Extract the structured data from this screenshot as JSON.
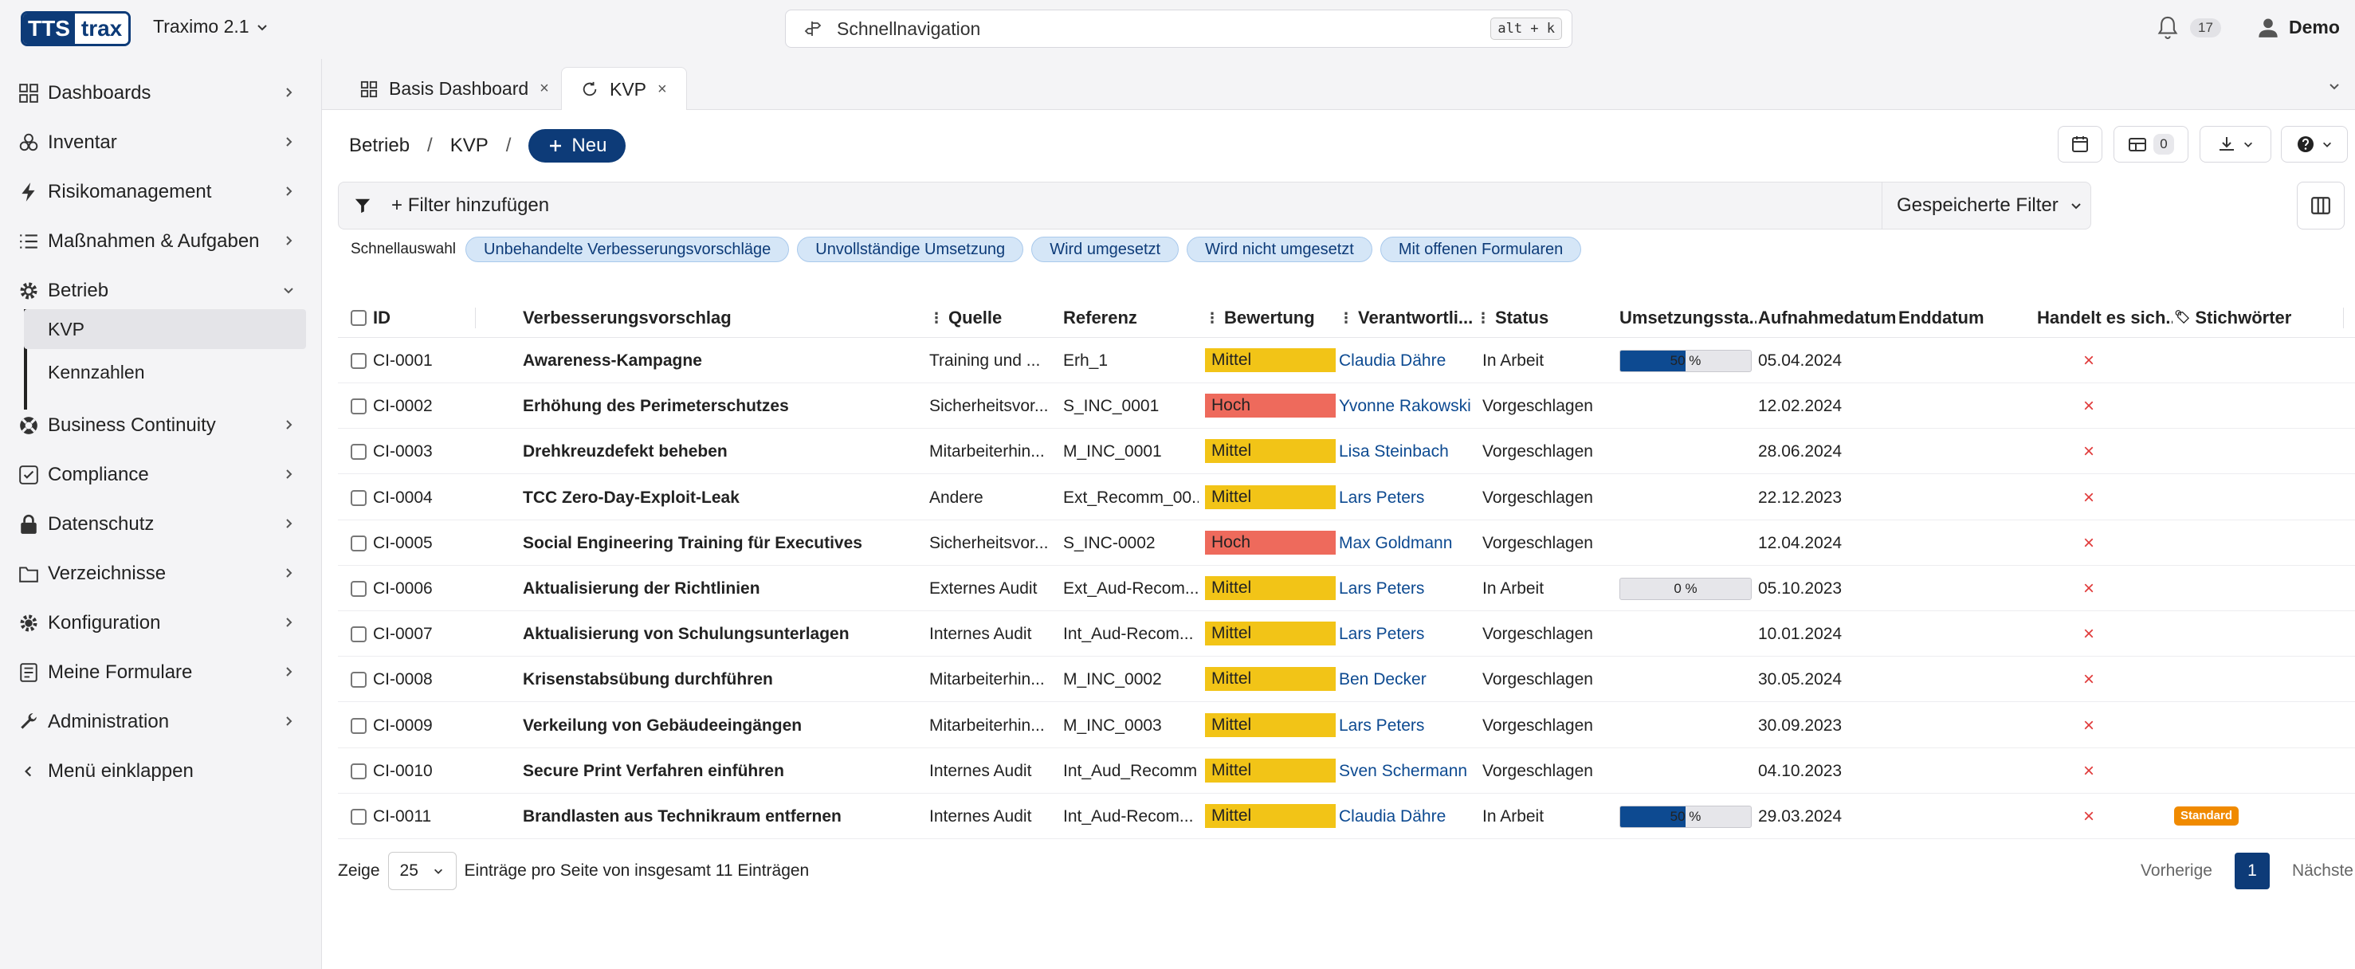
{
  "app": {
    "logo_part1": "TTS",
    "logo_part2": "trax",
    "name": "Traximo 2.1",
    "search_placeholder": "Schnellnavigation",
    "search_shortcut": "alt + k",
    "notification_count": "17",
    "user_name": "Demo"
  },
  "sidebar": {
    "items": [
      {
        "label": "Dashboards",
        "icon": "dashboard-grid-icon"
      },
      {
        "label": "Inventar",
        "icon": "cubes-icon"
      },
      {
        "label": "Risikomanagement",
        "icon": "bolt-icon"
      },
      {
        "label": "Maßnahmen & Aufgaben",
        "icon": "list-icon"
      },
      {
        "label": "Betrieb",
        "icon": "gear-icon"
      },
      {
        "label": "Business Continuity",
        "icon": "life-ring-icon"
      },
      {
        "label": "Compliance",
        "icon": "checkbox-icon"
      },
      {
        "label": "Datenschutz",
        "icon": "lock-icon"
      },
      {
        "label": "Verzeichnisse",
        "icon": "folder-icon"
      },
      {
        "label": "Konfiguration",
        "icon": "cog-icon"
      },
      {
        "label": "Meine Formulare",
        "icon": "form-icon"
      },
      {
        "label": "Administration",
        "icon": "wrench-icon"
      }
    ],
    "sub_items": [
      "KVP",
      "Kennzahlen"
    ],
    "collapse_label": "Menü einklappen"
  },
  "tabs": [
    {
      "label": "Basis Dashboard",
      "icon": "dashboard-grid-icon"
    },
    {
      "label": "KVP",
      "icon": "refresh-icon"
    }
  ],
  "breadcrumb": {
    "items": [
      "Betrieb",
      "KVP"
    ],
    "new_label": "Neu"
  },
  "toolbar": {
    "layout_count": "0"
  },
  "filter": {
    "add_label": "Filter hinzufügen",
    "saved_label": "Gespeicherte Filter"
  },
  "quick": {
    "label": "Schnellauswahl",
    "chips": [
      "Unbehandelte Verbesserungsvorschläge",
      "Unvollständige Umsetzung",
      "Wird umgesetzt",
      "Wird nicht umgesetzt",
      "Mit offenen Formularen"
    ]
  },
  "table": {
    "headers": [
      "ID",
      "Verbesserungsvorschlag",
      "Quelle",
      "Referenz",
      "Bewertung",
      "Verantwortli...",
      "Status",
      "Umsetzungssta...",
      "Aufnahmedatum",
      "Enddatum",
      "Handelt es sich...",
      "Stichwörter"
    ],
    "rows": [
      {
        "id": "CI-0001",
        "title": "Awareness-Kampagne",
        "source": "Training und ...",
        "ref": "Erh_1",
        "rating": "Mittel",
        "owner": "Claudia Dähre",
        "status": "In Arbeit",
        "progress": 50,
        "progress_label": "50 %",
        "date": "05.04.2024",
        "end": "",
        "flag": "×",
        "tag": ""
      },
      {
        "id": "CI-0002",
        "title": "Erhöhung des Perimeterschutzes",
        "source": "Sicherheitsvor...",
        "ref": "S_INC_0001",
        "rating": "Hoch",
        "owner": "Yvonne Rakowski",
        "status": "Vorgeschlagen",
        "progress": null,
        "progress_label": "",
        "date": "12.02.2024",
        "end": "",
        "flag": "×",
        "tag": ""
      },
      {
        "id": "CI-0003",
        "title": "Drehkreuzdefekt beheben",
        "source": "Mitarbeiterhin...",
        "ref": "M_INC_0001",
        "rating": "Mittel",
        "owner": "Lisa Steinbach",
        "status": "Vorgeschlagen",
        "progress": null,
        "progress_label": "",
        "date": "28.06.2024",
        "end": "",
        "flag": "×",
        "tag": ""
      },
      {
        "id": "CI-0004",
        "title": "TCC Zero-Day-Exploit-Leak",
        "source": "Andere",
        "ref": "Ext_Recomm_00...",
        "rating": "Mittel",
        "owner": "Lars Peters",
        "status": "Vorgeschlagen",
        "progress": null,
        "progress_label": "",
        "date": "22.12.2023",
        "end": "",
        "flag": "×",
        "tag": ""
      },
      {
        "id": "CI-0005",
        "title": "Social Engineering Training für Executives",
        "source": "Sicherheitsvor...",
        "ref": "S_INC-0002",
        "rating": "Hoch",
        "owner": "Max Goldmann",
        "status": "Vorgeschlagen",
        "progress": null,
        "progress_label": "",
        "date": "12.04.2024",
        "end": "",
        "flag": "×",
        "tag": ""
      },
      {
        "id": "CI-0006",
        "title": "Aktualisierung der Richtlinien",
        "source": "Externes Audit",
        "ref": "Ext_Aud-Recom...",
        "rating": "Mittel",
        "owner": "Lars Peters",
        "status": "In Arbeit",
        "progress": 0,
        "progress_label": "0 %",
        "date": "05.10.2023",
        "end": "",
        "flag": "×",
        "tag": ""
      },
      {
        "id": "CI-0007",
        "title": "Aktualisierung von Schulungsunterlagen",
        "source": "Internes Audit",
        "ref": "Int_Aud-Recom...",
        "rating": "Mittel",
        "owner": "Lars Peters",
        "status": "Vorgeschlagen",
        "progress": null,
        "progress_label": "",
        "date": "10.01.2024",
        "end": "",
        "flag": "×",
        "tag": ""
      },
      {
        "id": "CI-0008",
        "title": "Krisenstabsübung durchführen",
        "source": "Mitarbeiterhin...",
        "ref": "M_INC_0002",
        "rating": "Mittel",
        "owner": "Ben Decker",
        "status": "Vorgeschlagen",
        "progress": null,
        "progress_label": "",
        "date": "30.05.2024",
        "end": "",
        "flag": "×",
        "tag": ""
      },
      {
        "id": "CI-0009",
        "title": "Verkeilung von Gebäudeeingängen",
        "source": "Mitarbeiterhin...",
        "ref": "M_INC_0003",
        "rating": "Mittel",
        "owner": "Lars Peters",
        "status": "Vorgeschlagen",
        "progress": null,
        "progress_label": "",
        "date": "30.09.2023",
        "end": "",
        "flag": "×",
        "tag": ""
      },
      {
        "id": "CI-0010",
        "title": "Secure Print Verfahren einführen",
        "source": "Internes Audit",
        "ref": "Int_Aud_Recomm",
        "rating": "Mittel",
        "owner": "Sven Schermann",
        "status": "Vorgeschlagen",
        "progress": null,
        "progress_label": "",
        "date": "04.10.2023",
        "end": "",
        "flag": "×",
        "tag": ""
      },
      {
        "id": "CI-0011",
        "title": "Brandlasten aus Technikraum entfernen",
        "source": "Internes Audit",
        "ref": "Int_Aud-Recom...",
        "rating": "Mittel",
        "owner": "Claudia Dähre",
        "status": "In Arbeit",
        "progress": 50,
        "progress_label": "50 %",
        "date": "29.03.2024",
        "end": "",
        "flag": "×",
        "tag": "Standard"
      }
    ]
  },
  "footer": {
    "show_label": "Zeige",
    "page_size": "25",
    "summary": "Einträge pro Seite von insgesamt 11 Einträgen",
    "prev_label": "Vorherige",
    "current_page": "1",
    "next_label": "Nächste"
  },
  "colors": {
    "primary": "#0d3b78",
    "mittel": "#f2c417",
    "hoch": "#ee6a5c",
    "link": "#0d4a91",
    "tag": "#f08a00"
  }
}
